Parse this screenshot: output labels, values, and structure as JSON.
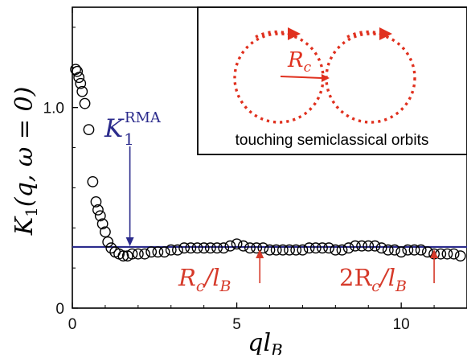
{
  "chart_data": {
    "type": "scatter",
    "xlabel_main": "ql",
    "xlabel_sub": "B",
    "ylabel_main": "K",
    "ylabel_sub": "1",
    "ylabel_args": "(q, ω = 0)",
    "xlim": [
      0,
      12
    ],
    "ylim": [
      0,
      1.5
    ],
    "x_ticks": [
      0,
      5,
      10
    ],
    "x_tick_labels": [
      "0",
      "5",
      "10"
    ],
    "y_ticks": [
      0,
      1.0
    ],
    "y_tick_labels": [
      "0",
      "1.0"
    ],
    "grid": false,
    "points": {
      "x": [
        0.1,
        0.15,
        0.2,
        0.25,
        0.3,
        0.38,
        0.5,
        0.62,
        0.72,
        0.78,
        0.85,
        0.92,
        1.0,
        1.08,
        1.18,
        1.3,
        1.42,
        1.55,
        1.68,
        1.82,
        2.0,
        2.2,
        2.4,
        2.6,
        2.8,
        3.0,
        3.2,
        3.4,
        3.6,
        3.8,
        4.0,
        4.2,
        4.4,
        4.6,
        4.8,
        5.0,
        5.2,
        5.4,
        5.6,
        5.8,
        6.0,
        6.2,
        6.4,
        6.6,
        6.8,
        7.0,
        7.2,
        7.4,
        7.6,
        7.8,
        8.0,
        8.2,
        8.4,
        8.6,
        8.8,
        9.0,
        9.2,
        9.4,
        9.6,
        9.8,
        10.0,
        10.2,
        10.4,
        10.6,
        10.8,
        11.0,
        11.2,
        11.4,
        11.6,
        11.8
      ],
      "y": [
        1.19,
        1.18,
        1.15,
        1.12,
        1.08,
        1.02,
        0.89,
        0.63,
        0.53,
        0.49,
        0.46,
        0.42,
        0.38,
        0.33,
        0.3,
        0.28,
        0.27,
        0.26,
        0.26,
        0.27,
        0.27,
        0.27,
        0.28,
        0.28,
        0.28,
        0.29,
        0.29,
        0.3,
        0.3,
        0.3,
        0.3,
        0.3,
        0.3,
        0.3,
        0.31,
        0.32,
        0.31,
        0.3,
        0.3,
        0.3,
        0.29,
        0.29,
        0.29,
        0.29,
        0.29,
        0.29,
        0.3,
        0.3,
        0.3,
        0.3,
        0.29,
        0.29,
        0.3,
        0.31,
        0.31,
        0.31,
        0.31,
        0.3,
        0.29,
        0.29,
        0.28,
        0.29,
        0.29,
        0.29,
        0.28,
        0.27,
        0.27,
        0.27,
        0.27,
        0.26
      ]
    },
    "rma_line": {
      "y": 0.305,
      "color": "#2b2b8c"
    },
    "annotations": {
      "rma_main": "K",
      "rma_sub": "1",
      "rma_sup": "RMA",
      "rma_arrow_x": 1.75,
      "rc_main": "R",
      "rc_sub": "c",
      "rc_over": "/l",
      "rc_sub2": "B",
      "rc_x": 5.7,
      "two_rc_main": "2R",
      "two_rc_sub": "c",
      "two_rc_over": "/l",
      "two_rc_sub2": "B",
      "two_rc_x": 11.0,
      "annotation_color": "#d63a2a"
    },
    "inset": {
      "caption": "touching semiclassical orbits",
      "radius_main": "R",
      "radius_sub": "c",
      "orbit_color": "#e0301e"
    }
  }
}
